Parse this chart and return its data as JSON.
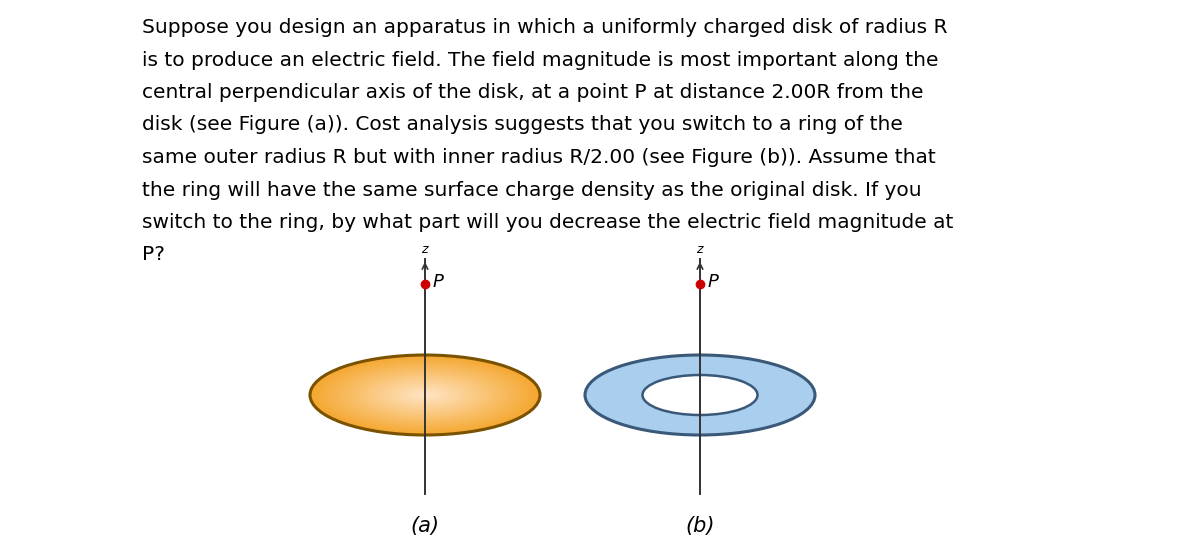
{
  "bg_color": "#ffffff",
  "text_color": "#000000",
  "paragraph_lines": [
    "Suppose you design an apparatus in which a uniformly charged disk of radius R",
    "is to produce an electric field. The field magnitude is most important along the",
    "central perpendicular axis of the disk, at a point P at distance 2.00R from the",
    "disk (see Figure (a)). Cost analysis suggests that you switch to a ring of the",
    "same outer radius R but with inner radius R/2.00 (see Figure (b)). Assume that",
    "the ring will have the same surface charge density as the original disk. If you",
    "switch to the ring, by what part will you decrease the electric field magnitude at",
    "P?"
  ],
  "fig_a_label": "(a)",
  "fig_b_label": "(b)",
  "disk_fill_color": "#F5A830",
  "disk_edge_color": "#7A5200",
  "ring_fill_color": "#AACFEE",
  "ring_edge_color": "#3A5878",
  "axis_color": "#333333",
  "point_color": "#CC0000",
  "text_fontsize": 14.5,
  "label_fontsize": 15
}
